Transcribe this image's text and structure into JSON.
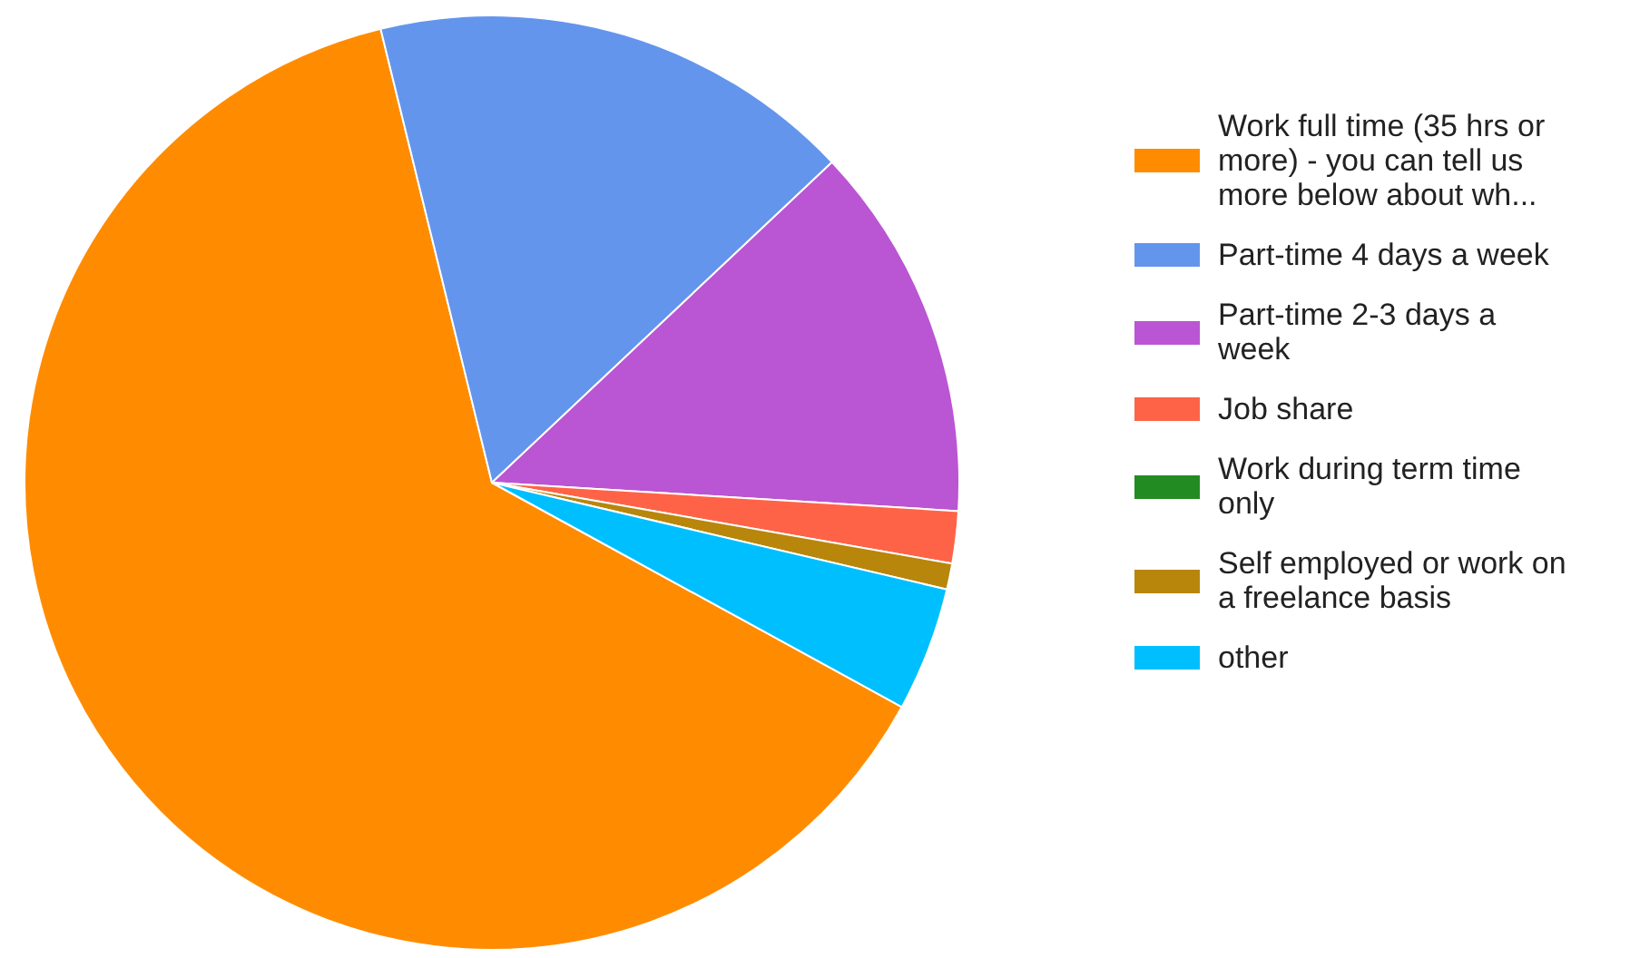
{
  "chart_data": {
    "type": "pie",
    "categories": [
      "Work full time (35 hrs or more) - you can tell us more below about wh...",
      "Part-time 4 days a week",
      "Part-time 2-3 days a week",
      "Job share",
      "Work during term time only",
      "Self employed or work on a freelance basis",
      "other"
    ],
    "values": [
      63.2,
      16.8,
      13.0,
      1.8,
      0,
      0.9,
      4.3
    ],
    "colors": [
      "#ff8c00",
      "#6495ed",
      "#ba55d3",
      "#ff6347",
      "#228b22",
      "#b8860b",
      "#00bfff"
    ],
    "legend": "right"
  }
}
